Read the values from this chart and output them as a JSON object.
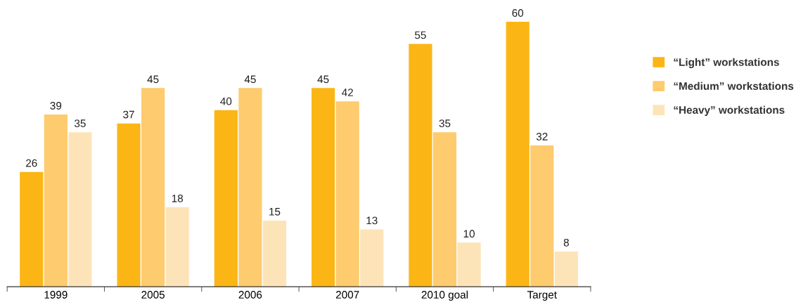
{
  "chart_data": {
    "type": "bar",
    "categories": [
      "1999",
      "2005",
      "2006",
      "2007",
      "2010 goal",
      "Target"
    ],
    "series": [
      {
        "name": "“Light” workstations",
        "color": "#fbb616",
        "values": [
          26,
          37,
          40,
          45,
          55,
          60
        ]
      },
      {
        "name": "“Medium” workstations",
        "color": "#fecb6e",
        "values": [
          39,
          45,
          45,
          42,
          35,
          32
        ]
      },
      {
        "name": "“Heavy” workstations",
        "color": "#fde4b8",
        "values": [
          35,
          18,
          15,
          13,
          10,
          8
        ]
      }
    ],
    "data_labels": true,
    "legend": "right",
    "grid": false,
    "tick_labels": "x"
  }
}
